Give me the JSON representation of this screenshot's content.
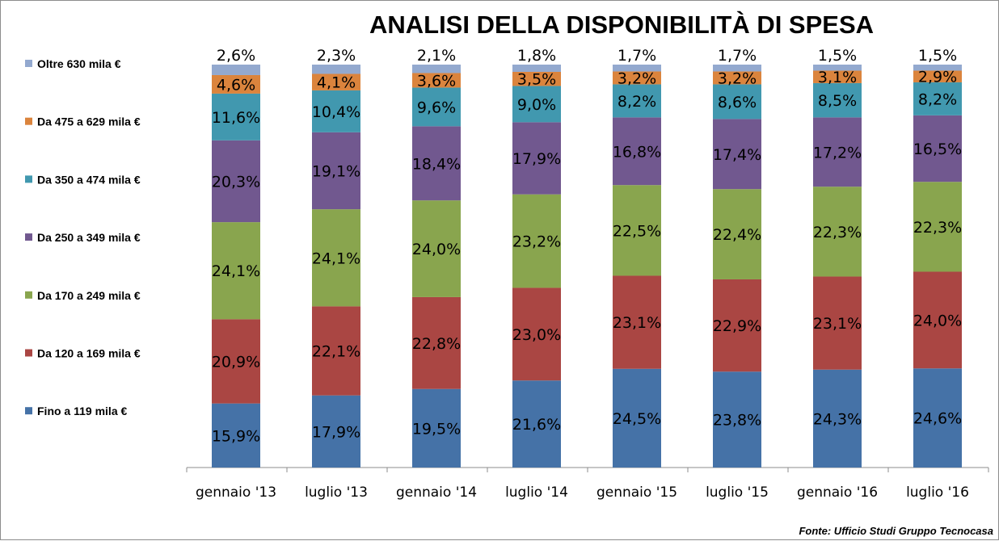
{
  "chart_data": {
    "type": "bar",
    "stacked": true,
    "title": "ANALISI DELLA DISPONIBILITÀ DI SPESA",
    "source": "Fonte: Ufficio Studi Gruppo Tecnocasa",
    "legend_position": "left",
    "grid": false,
    "value_unit": "%",
    "categories": [
      "gennaio '13",
      "luglio '13",
      "gennaio '14",
      "luglio '14",
      "gennaio '15",
      "luglio '15",
      "gennaio '16",
      "luglio '16"
    ],
    "series": [
      {
        "name": "Fino a 119 mila €",
        "color": "#4572A7",
        "values": [
          15.9,
          17.9,
          19.5,
          21.6,
          24.5,
          23.8,
          24.3,
          24.6
        ],
        "labels": [
          "15,9%",
          "17,9%",
          "19,5%",
          "21,6%",
          "24,5%",
          "23,8%",
          "24,3%",
          "24,6%"
        ]
      },
      {
        "name": "Da 120 a 169 mila €",
        "color": "#AA4643",
        "values": [
          20.9,
          22.1,
          22.8,
          23.0,
          23.1,
          22.9,
          23.1,
          24.0
        ],
        "labels": [
          "20,9%",
          "22,1%",
          "22,8%",
          "23,0%",
          "23,1%",
          "22,9%",
          "23,1%",
          "24,0%"
        ]
      },
      {
        "name": "Da 170 a 249 mila €",
        "color": "#89A54E",
        "values": [
          24.1,
          24.1,
          24.0,
          23.2,
          22.5,
          22.4,
          22.3,
          22.3
        ],
        "labels": [
          "24,1%",
          "24,1%",
          "24,0%",
          "23,2%",
          "22,5%",
          "22,4%",
          "22,3%",
          "22,3%"
        ]
      },
      {
        "name": "Da 250 a 349 mila €",
        "color": "#71588F",
        "values": [
          20.3,
          19.1,
          18.4,
          17.9,
          16.8,
          17.4,
          17.2,
          16.5
        ],
        "labels": [
          "20,3%",
          "19,1%",
          "18,4%",
          "17,9%",
          "16,8%",
          "17,4%",
          "17,2%",
          "16,5%"
        ]
      },
      {
        "name": "Da 350 a 474 mila €",
        "color": "#4198AF",
        "values": [
          11.6,
          10.4,
          9.6,
          9.0,
          8.2,
          8.6,
          8.5,
          8.2
        ],
        "labels": [
          "11,6%",
          "10,4%",
          "9,6%",
          "9,0%",
          "8,2%",
          "8,6%",
          "8,5%",
          "8,2%"
        ]
      },
      {
        "name": "Da 475 a 629 mila €",
        "color": "#DB843D",
        "values": [
          4.6,
          4.1,
          3.6,
          3.5,
          3.2,
          3.2,
          3.1,
          2.9
        ],
        "labels": [
          "4,6%",
          "4,1%",
          "3,6%",
          "3,5%",
          "3,2%",
          "3,2%",
          "3,1%",
          "2,9%"
        ]
      },
      {
        "name": "Oltre 630 mila €",
        "color": "#93A9CF",
        "values": [
          2.6,
          2.3,
          2.1,
          1.8,
          1.7,
          1.7,
          1.5,
          1.5
        ],
        "labels": [
          "2,6%",
          "2,3%",
          "2,1%",
          "1,8%",
          "1,7%",
          "1,7%",
          "1,5%",
          "1,5%"
        ]
      }
    ]
  }
}
